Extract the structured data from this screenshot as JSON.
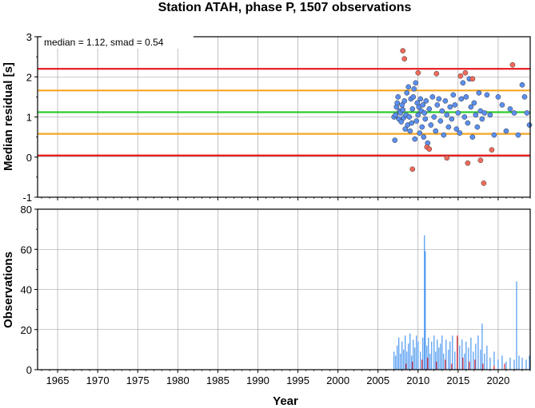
{
  "chart_data": [
    {
      "type": "scatter",
      "title": "Station ATAH, phase P, 1507 observations",
      "ylabel": "Median residual [s]",
      "annotation": "median = 1.12, smad = 0.54",
      "xlim": [
        1962.5,
        2024
      ],
      "ylim": [
        -1,
        3
      ],
      "yticks": [
        "-1",
        "0",
        "1",
        "2",
        "3"
      ],
      "grid": true,
      "reference_lines": [
        {
          "y": 2.2,
          "color": "#e8141a"
        },
        {
          "y": 1.66,
          "color": "#f5a623"
        },
        {
          "y": 1.12,
          "color": "#2ecc2e"
        },
        {
          "y": 0.58,
          "color": "#f5a623"
        },
        {
          "y": 0.04,
          "color": "#e8141a"
        }
      ],
      "series": [
        {
          "color": "#5b8ff0",
          "points": [
            [
              2007.0,
              1.0
            ],
            [
              2007.1,
              0.42
            ],
            [
              2007.2,
              1.05
            ],
            [
              2007.3,
              1.25
            ],
            [
              2007.4,
              1.35
            ],
            [
              2007.5,
              1.5
            ],
            [
              2007.6,
              0.95
            ],
            [
              2007.7,
              1.15
            ],
            [
              2007.8,
              1.1
            ],
            [
              2007.9,
              0.88
            ],
            [
              2008.0,
              1.3
            ],
            [
              2008.1,
              1.18
            ],
            [
              2008.2,
              0.98
            ],
            [
              2008.3,
              1.4
            ],
            [
              2008.4,
              0.7
            ],
            [
              2008.5,
              1.05
            ],
            [
              2008.6,
              1.6
            ],
            [
              2008.7,
              0.8
            ],
            [
              2008.8,
              1.75
            ],
            [
              2008.9,
              1.0
            ],
            [
              2009.0,
              0.65
            ],
            [
              2009.1,
              1.45
            ],
            [
              2009.2,
              0.85
            ],
            [
              2009.3,
              1.2
            ],
            [
              2009.4,
              1.5
            ],
            [
              2009.5,
              1.7
            ],
            [
              2009.6,
              0.45
            ],
            [
              2009.7,
              1.85
            ],
            [
              2009.8,
              0.9
            ],
            [
              2009.9,
              1.35
            ],
            [
              2010.0,
              1.05
            ],
            [
              2010.1,
              1.25
            ],
            [
              2010.2,
              0.6
            ],
            [
              2010.3,
              1.45
            ],
            [
              2010.4,
              1.15
            ],
            [
              2010.5,
              0.75
            ],
            [
              2010.6,
              1.3
            ],
            [
              2010.7,
              0.5
            ],
            [
              2010.8,
              1.1
            ],
            [
              2010.9,
              0.95
            ],
            [
              2011.0,
              1.4
            ],
            [
              2011.2,
              0.35
            ],
            [
              2011.4,
              1.2
            ],
            [
              2011.6,
              0.8
            ],
            [
              2011.8,
              1.5
            ],
            [
              2012.0,
              1.0
            ],
            [
              2012.2,
              0.65
            ],
            [
              2012.4,
              1.3
            ],
            [
              2012.6,
              1.45
            ],
            [
              2012.8,
              0.9
            ],
            [
              2013.0,
              1.15
            ],
            [
              2013.2,
              0.55
            ],
            [
              2013.4,
              1.4
            ],
            [
              2013.6,
              1.05
            ],
            [
              2013.8,
              0.75
            ],
            [
              2014.0,
              1.25
            ],
            [
              2014.2,
              0.95
            ],
            [
              2014.4,
              1.55
            ],
            [
              2014.6,
              1.3
            ],
            [
              2014.8,
              0.7
            ],
            [
              2015.0,
              1.1
            ],
            [
              2015.2,
              0.6
            ],
            [
              2015.4,
              1.45
            ],
            [
              2015.6,
              1.85
            ],
            [
              2015.8,
              1.0
            ],
            [
              2016.0,
              1.5
            ],
            [
              2016.2,
              0.85
            ],
            [
              2016.4,
              1.95
            ],
            [
              2016.6,
              1.25
            ],
            [
              2016.8,
              0.5
            ],
            [
              2017.0,
              1.35
            ],
            [
              2017.2,
              1.05
            ],
            [
              2017.4,
              0.75
            ],
            [
              2017.6,
              1.6
            ],
            [
              2017.8,
              1.15
            ],
            [
              2018.0,
              0.95
            ],
            [
              2018.3,
              1.1
            ],
            [
              2018.6,
              1.55
            ],
            [
              2019.0,
              1.05
            ],
            [
              2019.5,
              0.55
            ],
            [
              2020.0,
              1.5
            ],
            [
              2020.5,
              1.3
            ],
            [
              2021.0,
              0.65
            ],
            [
              2021.5,
              1.2
            ],
            [
              2022.0,
              1.1
            ],
            [
              2022.5,
              0.55
            ],
            [
              2023.0,
              1.8
            ],
            [
              2023.3,
              1.5
            ],
            [
              2023.6,
              1.1
            ],
            [
              2023.9,
              0.8
            ]
          ]
        },
        {
          "color": "#f26b5b",
          "points": [
            [
              2008.1,
              2.65
            ],
            [
              2008.3,
              2.45
            ],
            [
              2009.3,
              -0.3
            ],
            [
              2010.0,
              2.1
            ],
            [
              2011.1,
              0.25
            ],
            [
              2011.4,
              0.2
            ],
            [
              2012.3,
              2.08
            ],
            [
              2013.6,
              -0.02
            ],
            [
              2015.3,
              2.02
            ],
            [
              2015.9,
              2.1
            ],
            [
              2016.2,
              -0.15
            ],
            [
              2016.8,
              1.95
            ],
            [
              2017.8,
              -0.08
            ],
            [
              2018.2,
              -0.65
            ],
            [
              2019.2,
              0.18
            ],
            [
              2021.8,
              2.3
            ]
          ]
        }
      ]
    },
    {
      "type": "bar",
      "xlabel": "Year",
      "ylabel": "Observations",
      "xlim": [
        1962.5,
        2024
      ],
      "ylim": [
        0,
        80
      ],
      "xticks": [
        "1965",
        "1970",
        "1975",
        "1980",
        "1985",
        "1990",
        "1995",
        "2000",
        "2005",
        "2010",
        "2015",
        "2020"
      ],
      "yticks": [
        "0",
        "20",
        "40",
        "60",
        "80"
      ],
      "grid": true,
      "series": [
        {
          "color": "#3a8ef0",
          "points": [
            [
              2007.0,
              9
            ],
            [
              2007.2,
              7
            ],
            [
              2007.4,
              12
            ],
            [
              2007.6,
              16
            ],
            [
              2007.8,
              8
            ],
            [
              2008.0,
              14
            ],
            [
              2008.2,
              10
            ],
            [
              2008.4,
              17
            ],
            [
              2008.6,
              9
            ],
            [
              2008.8,
              13
            ],
            [
              2009.0,
              18
            ],
            [
              2009.2,
              7
            ],
            [
              2009.4,
              15
            ],
            [
              2009.6,
              11
            ],
            [
              2009.8,
              17
            ],
            [
              2010.0,
              14
            ],
            [
              2010.3,
              9
            ],
            [
              2010.6,
              16
            ],
            [
              2010.8,
              67
            ],
            [
              2010.9,
              59
            ],
            [
              2011.1,
              12
            ],
            [
              2011.3,
              16
            ],
            [
              2011.5,
              8
            ],
            [
              2011.7,
              14
            ],
            [
              2012.0,
              17
            ],
            [
              2012.2,
              9
            ],
            [
              2012.4,
              15
            ],
            [
              2012.6,
              11
            ],
            [
              2012.8,
              13
            ],
            [
              2013.0,
              17
            ],
            [
              2013.2,
              8
            ],
            [
              2013.5,
              15
            ],
            [
              2013.8,
              10
            ],
            [
              2014.0,
              14
            ],
            [
              2014.3,
              17
            ],
            [
              2014.6,
              9
            ],
            [
              2014.9,
              16
            ],
            [
              2015.2,
              12
            ],
            [
              2015.5,
              15
            ],
            [
              2015.8,
              8
            ],
            [
              2016.0,
              14
            ],
            [
              2016.3,
              11
            ],
            [
              2016.6,
              16
            ],
            [
              2016.9,
              9
            ],
            [
              2017.2,
              13
            ],
            [
              2017.5,
              17
            ],
            [
              2017.8,
              10
            ],
            [
              2018.0,
              23
            ],
            [
              2018.3,
              8
            ],
            [
              2018.6,
              12
            ],
            [
              2019.0,
              6
            ],
            [
              2019.5,
              9
            ],
            [
              2020.0,
              5
            ],
            [
              2020.5,
              7
            ],
            [
              2021.0,
              4
            ],
            [
              2021.5,
              6
            ],
            [
              2022.0,
              5
            ],
            [
              2022.3,
              44
            ],
            [
              2022.6,
              7
            ],
            [
              2023.0,
              6
            ],
            [
              2023.5,
              5
            ],
            [
              2023.9,
              7
            ]
          ]
        },
        {
          "color": "#e8141a",
          "points": [
            [
              2008.5,
              3
            ],
            [
              2009.3,
              4
            ],
            [
              2010.5,
              5
            ],
            [
              2011.2,
              6
            ],
            [
              2012.3,
              4
            ],
            [
              2013.4,
              5
            ],
            [
              2014.2,
              3
            ],
            [
              2014.9,
              17
            ],
            [
              2015.6,
              6
            ],
            [
              2016.4,
              4
            ],
            [
              2017.1,
              5
            ],
            [
              2018.1,
              3
            ],
            [
              2019.5,
              2
            ],
            [
              2020.8,
              3
            ]
          ]
        }
      ]
    }
  ]
}
